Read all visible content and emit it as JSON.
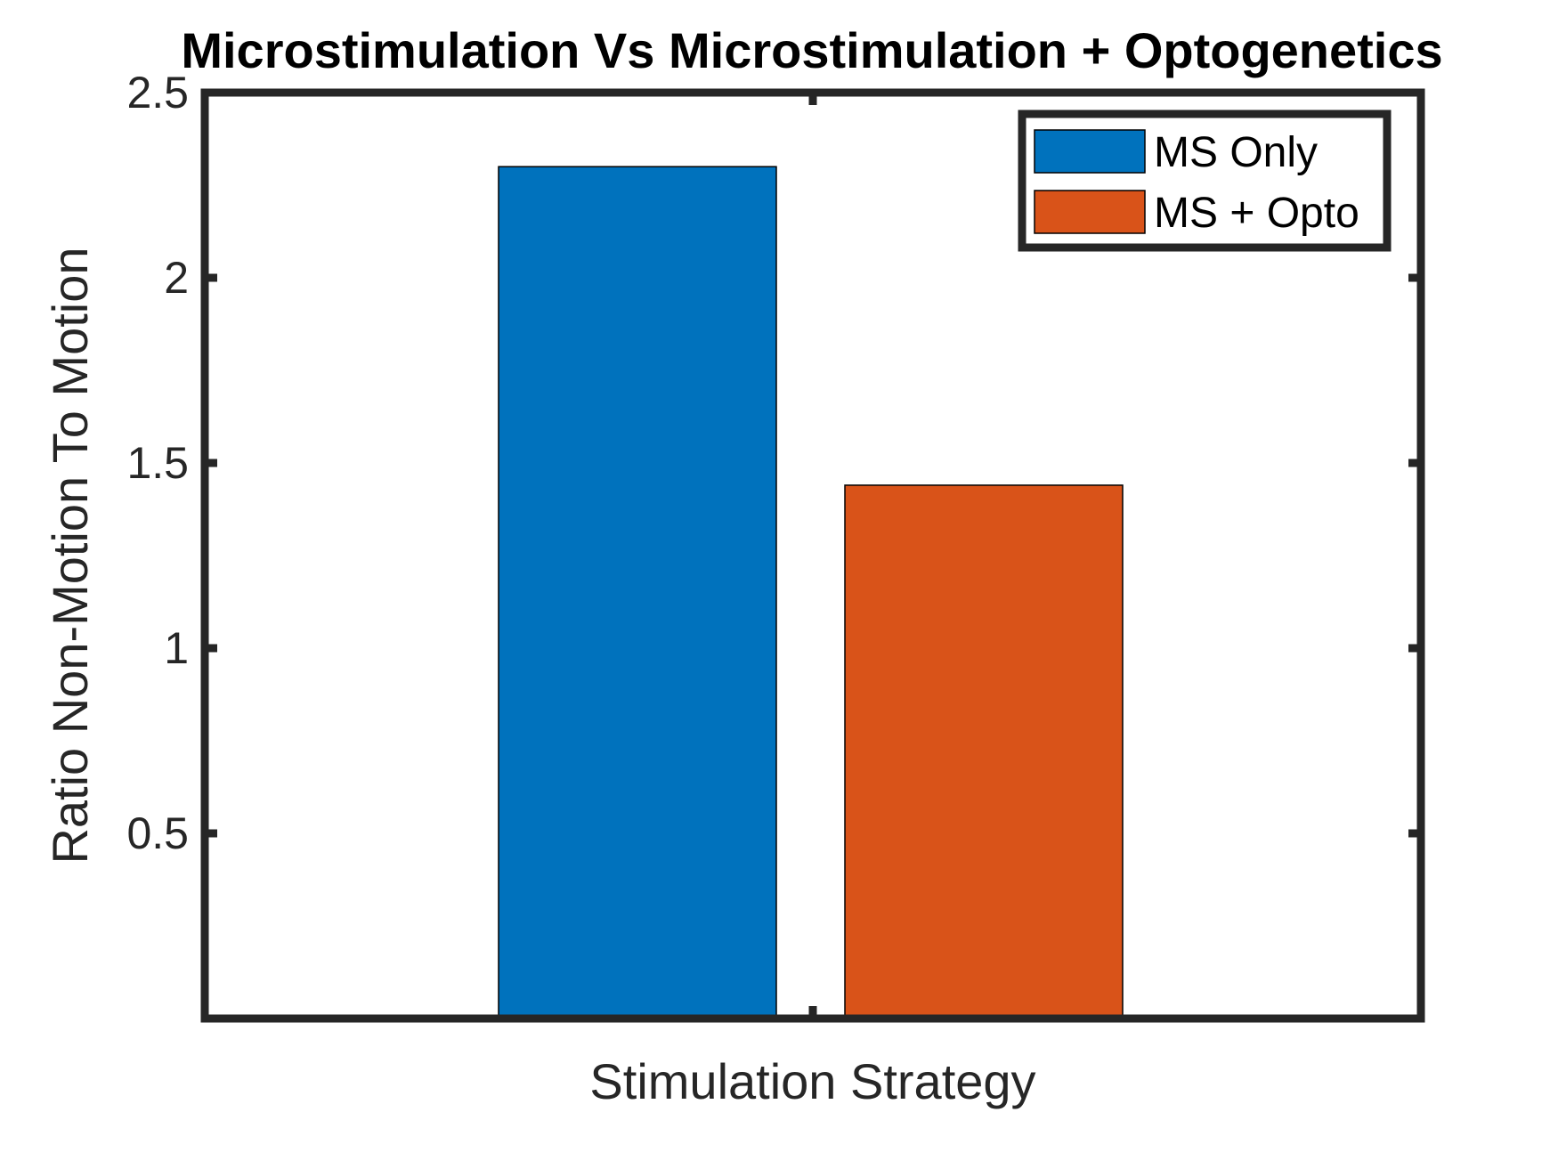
{
  "chart_data": {
    "type": "bar",
    "title": "Microstimulation Vs Microstimulation + Optogenetics",
    "xlabel": "Stimulation Strategy",
    "ylabel": "Ratio Non-Motion To Motion",
    "ylim": [
      0,
      2.5
    ],
    "yticks": [
      0.5,
      1,
      1.5,
      2,
      2.5
    ],
    "ytick_labels": [
      "0.5",
      "1",
      "1.5",
      "2",
      "2.5"
    ],
    "grid": false,
    "legend_position": "top-right",
    "series": [
      {
        "name": "MS Only",
        "value": 2.3,
        "color": "#0072BD"
      },
      {
        "name": "MS + Opto",
        "value": 1.44,
        "color": "#D95319"
      }
    ]
  }
}
